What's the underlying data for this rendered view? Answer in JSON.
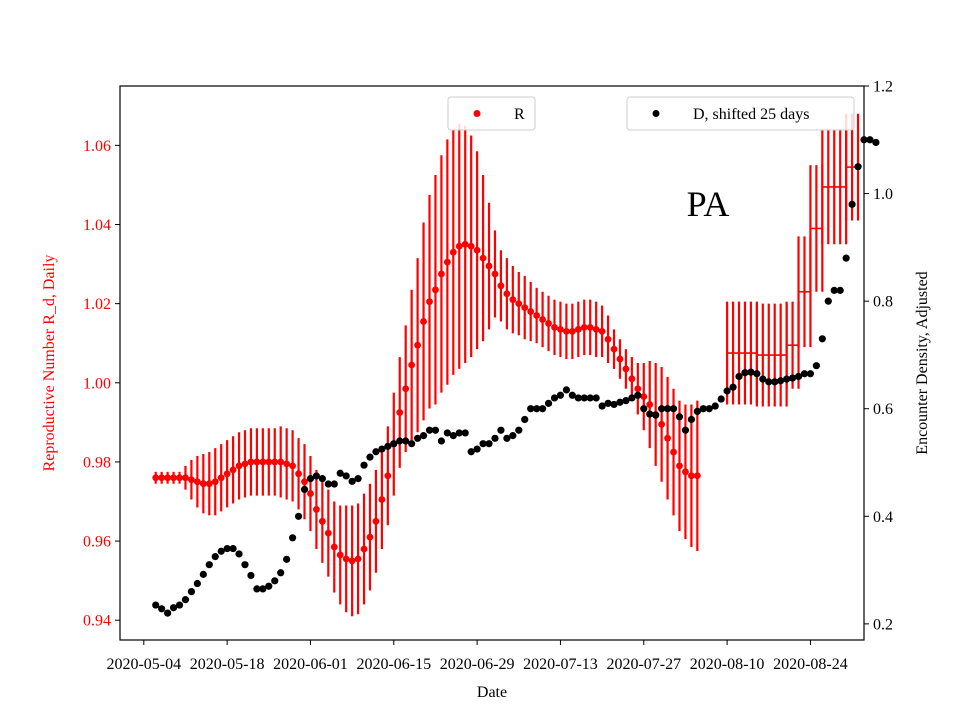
{
  "chart_data": {
    "type": "scatter",
    "xlabel": "Date",
    "ylabel_left": "Reproductive Number R_d, Daily",
    "ylabel_right": "Encounter Density, Adjusted",
    "annotation": "PA",
    "x_ticks": [
      "2020-05-04",
      "2020-05-18",
      "2020-06-01",
      "2020-06-15",
      "2020-06-29",
      "2020-07-13",
      "2020-07-27",
      "2020-08-10",
      "2020-08-24"
    ],
    "x_range": [
      "2020-04-30",
      "2020-09-02"
    ],
    "y_left_ticks": [
      "0.94",
      "0.96",
      "0.98",
      "1.00",
      "1.02",
      "1.04",
      "1.06"
    ],
    "y_left_range": [
      0.935,
      1.075
    ],
    "y_right_ticks": [
      "0.2",
      "0.4",
      "0.6",
      "0.8",
      "1.0",
      "1.2"
    ],
    "y_right_range": [
      0.17,
      1.2
    ],
    "legend_left": "top-center",
    "legend_right": "top-right",
    "colors": {
      "R": "#ff0000",
      "D": "#000000"
    },
    "series": [
      {
        "name": "R",
        "axis": "left",
        "start_date": "2020-05-06",
        "values": [
          0.976,
          0.976,
          0.976,
          0.976,
          0.976,
          0.976,
          0.9755,
          0.975,
          0.9745,
          0.9745,
          0.975,
          0.976,
          0.977,
          0.978,
          0.979,
          0.9795,
          0.98,
          0.98,
          0.98,
          0.98,
          0.98,
          0.98,
          0.9795,
          0.979,
          0.977,
          0.975,
          0.972,
          0.968,
          0.965,
          0.962,
          0.9585,
          0.9565,
          0.9555,
          0.955,
          0.9555,
          0.958,
          0.961,
          0.965,
          0.9705,
          0.9765,
          0.9845,
          0.9925,
          0.9985,
          1.0045,
          1.0095,
          1.0155,
          1.0205,
          1.0235,
          1.0275,
          1.0305,
          1.033,
          1.0345,
          1.035,
          1.0345,
          1.0335,
          1.0315,
          1.0295,
          1.0275,
          1.0245,
          1.0225,
          1.021,
          1.02,
          1.019,
          1.018,
          1.017,
          1.016,
          1.015,
          1.014,
          1.0135,
          1.013,
          1.013,
          1.0135,
          1.014,
          1.014,
          1.0135,
          1.013,
          1.011,
          1.0085,
          1.006,
          1.0035,
          1.001,
          0.9985,
          0.9965,
          0.9945,
          0.992,
          0.9895,
          0.986,
          0.9825,
          0.979,
          0.9775,
          0.9765,
          0.9765
        ],
        "errors": [
          0.0015,
          0.0015,
          0.0015,
          0.0015,
          0.0015,
          0.003,
          0.005,
          0.0065,
          0.0075,
          0.008,
          0.0085,
          0.0085,
          0.0085,
          0.0085,
          0.0085,
          0.0085,
          0.0085,
          0.0085,
          0.0085,
          0.0085,
          0.0085,
          0.009,
          0.009,
          0.009,
          0.009,
          0.0095,
          0.0095,
          0.01,
          0.0105,
          0.011,
          0.0115,
          0.0125,
          0.0135,
          0.014,
          0.014,
          0.014,
          0.0135,
          0.013,
          0.0125,
          0.0125,
          0.013,
          0.014,
          0.016,
          0.019,
          0.022,
          0.025,
          0.027,
          0.029,
          0.03,
          0.031,
          0.031,
          0.031,
          0.03,
          0.028,
          0.025,
          0.021,
          0.016,
          0.011,
          0.009,
          0.009,
          0.0085,
          0.008,
          0.008,
          0.0075,
          0.007,
          0.007,
          0.007,
          0.007,
          0.007,
          0.007,
          0.007,
          0.007,
          0.007,
          0.007,
          0.007,
          0.0065,
          0.006,
          0.005,
          0.005,
          0.005,
          0.0055,
          0.0065,
          0.0085,
          0.011,
          0.013,
          0.0145,
          0.0155,
          0.016,
          0.0165,
          0.017,
          0.018,
          0.019
        ]
      },
      {
        "name": "R (ranges)",
        "axis": "left",
        "ranges": [
          [
            "2020-08-10",
            "2020-08-15",
            1.0075,
            0.013
          ],
          [
            "2020-08-15",
            "2020-08-20",
            1.007,
            0.013
          ],
          [
            "2020-08-20",
            "2020-08-22",
            1.0095,
            0.011
          ],
          [
            "2020-08-22",
            "2020-08-24",
            1.023,
            0.014
          ],
          [
            "2020-08-24",
            "2020-08-26",
            1.039,
            0.016
          ],
          [
            "2020-08-26",
            "2020-08-30",
            1.0495,
            0.0145
          ],
          [
            "2020-08-30",
            "2020-09-01",
            1.0545,
            0.0135
          ]
        ]
      },
      {
        "name": "D, shifted 25 days",
        "axis": "right",
        "start_date": "2020-05-06",
        "values": [
          0.235,
          0.228,
          0.22,
          0.23,
          0.235,
          0.245,
          0.26,
          0.275,
          0.292,
          0.31,
          0.325,
          0.335,
          0.34,
          0.34,
          0.33,
          0.31,
          0.29,
          0.265,
          0.265,
          0.27,
          0.28,
          0.295,
          0.32,
          0.36,
          0.4,
          0.45,
          0.47,
          0.475,
          0.47,
          0.46,
          0.46,
          0.48,
          0.475,
          0.465,
          0.47,
          0.495,
          0.51,
          0.52,
          0.525,
          0.53,
          0.535,
          0.54,
          0.54,
          0.535,
          0.545,
          0.55,
          0.56,
          0.56,
          0.54,
          0.555,
          0.55,
          0.555,
          0.555,
          0.52,
          0.525,
          0.535,
          0.535,
          0.545,
          0.56,
          0.545,
          0.55,
          0.56,
          0.58,
          0.6,
          0.6,
          0.6,
          0.61,
          0.62,
          0.625,
          0.635,
          0.625,
          0.62,
          0.62,
          0.62,
          0.62,
          0.605,
          0.61,
          0.608,
          0.612,
          0.615,
          0.62,
          0.625,
          0.6,
          0.59,
          0.588,
          0.6,
          0.6,
          0.6,
          0.585,
          0.56,
          0.58,
          0.595,
          0.6,
          0.6,
          0.605,
          0.618,
          0.633,
          0.64,
          0.66,
          0.667,
          0.668,
          0.665,
          0.655,
          0.65,
          0.65,
          0.652,
          0.655,
          0.657,
          0.66,
          0.665,
          0.665,
          0.68,
          0.73,
          0.8,
          0.82,
          0.82,
          0.88,
          0.98,
          1.05,
          1.1,
          1.1,
          1.095
        ]
      }
    ]
  },
  "legend": {
    "r_label": "R",
    "d_label": "D, shifted 25 days"
  }
}
